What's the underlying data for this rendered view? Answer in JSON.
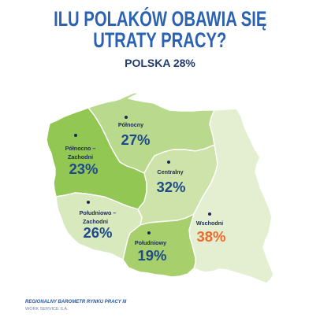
{
  "title": {
    "line1": "ILU POLAKÓW OBAWIA SIĘ",
    "line2": "UTRATY PRACY?"
  },
  "national": {
    "label": "POLSKA",
    "value": "28%"
  },
  "regions": {
    "polnocny": {
      "name": [
        "Północny"
      ],
      "value": "27%",
      "fill": "#b9d98d"
    },
    "polnocno_zachodni": {
      "name": [
        "Północno –",
        "Zachodni"
      ],
      "value": "23%",
      "fill": "#93c753"
    },
    "centralny": {
      "name": [
        "Centralny"
      ],
      "value": "32%",
      "fill": "#cde3a9"
    },
    "poludniowo_zachodni": {
      "name": [
        "Południowo –",
        "Zachodni"
      ],
      "value": "26%",
      "fill": "#d7e9bd"
    },
    "poludniowy": {
      "name": [
        "Południowy"
      ],
      "value": "19%",
      "fill": "#a7d06d"
    },
    "wschodni": {
      "name": [
        "Wschodni"
      ],
      "value": "38%",
      "fill": "#e3efd0"
    }
  },
  "colors": {
    "title": "#2b62b2",
    "subtitle": "#233c6e",
    "region_label": "#1c2b52",
    "region_value": "#1e4a8a",
    "highlight_value": "#ee6a2b",
    "marker": "#1c2b52",
    "border": "#ffffff",
    "footer_source": "#2357a5",
    "footer_publisher": "#7383a6"
  },
  "footer": {
    "source": "REGIONALNY BAROMETR RYNKU PRACY III",
    "publisher": "WORK SERVICE S.A."
  }
}
